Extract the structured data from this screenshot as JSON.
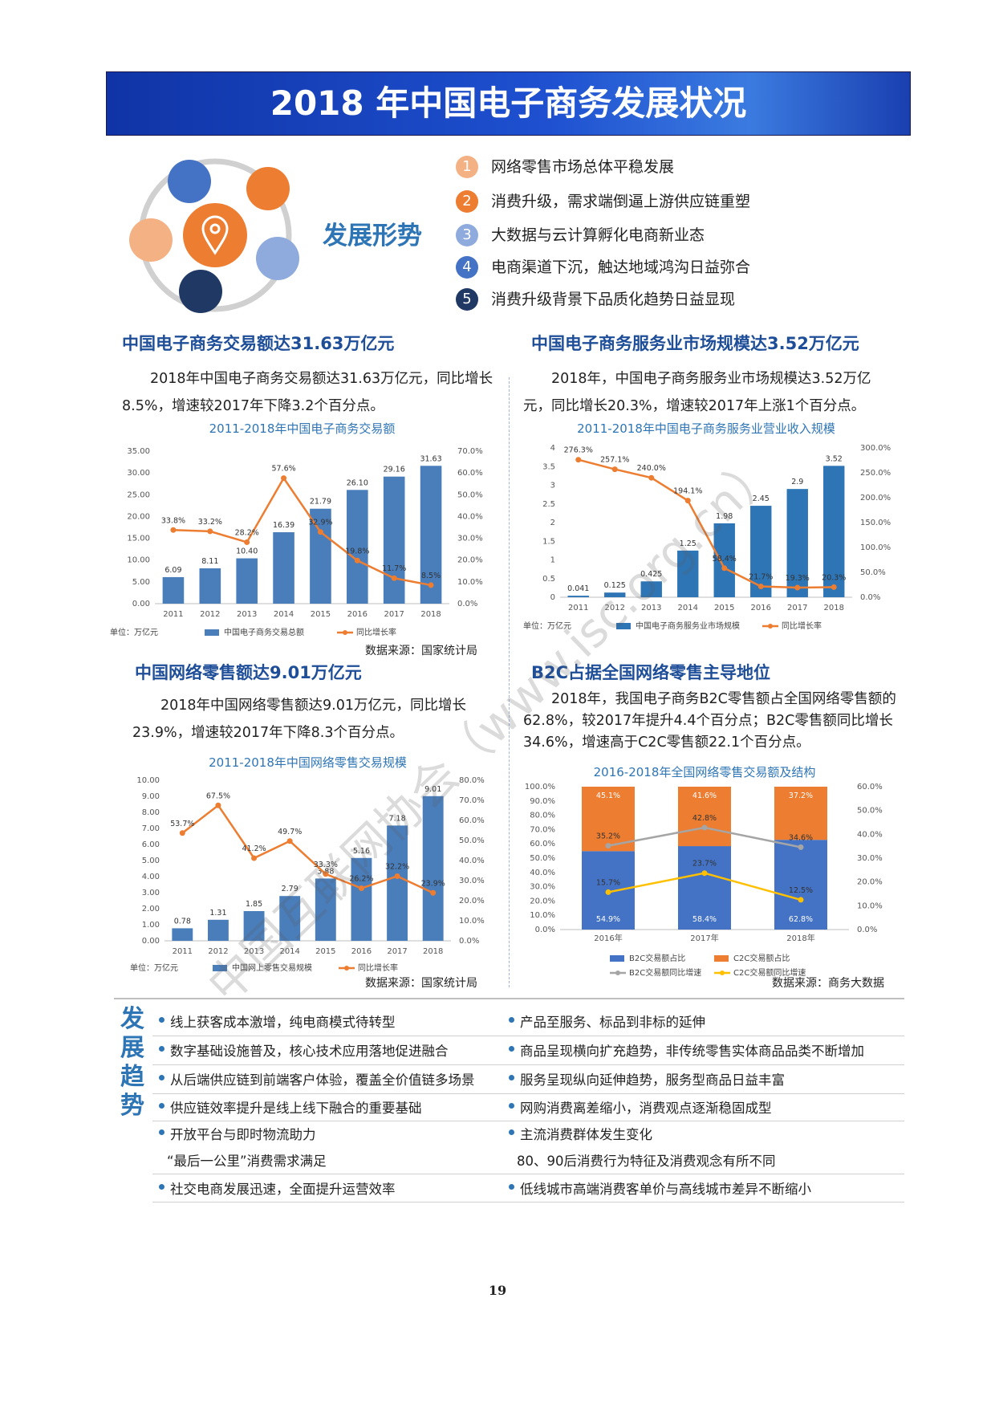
{
  "header": {
    "title": "2018 年中国电子商务发展状况"
  },
  "situation": {
    "label": "发展形势",
    "items": [
      {
        "number": 1,
        "text": "网络零售市场总体平稳发展",
        "color": "#f4b183"
      },
      {
        "number": 2,
        "text": "消费升级，需求端倒逼上游供应链重塑",
        "color": "#ed7d31"
      },
      {
        "number": 3,
        "text": "大数据与云计算孵化电商新业态",
        "color": "#8faadc"
      },
      {
        "number": 4,
        "text": "电商渠道下沉，触达地域鸿沟日益弥合",
        "color": "#4472c4"
      },
      {
        "number": 5,
        "text": "消费升级背景下品质化趋势日益显现",
        "color": "#203864"
      }
    ]
  },
  "sections": [
    {
      "heading": "中国电子商务交易额达31.63万亿元",
      "text": "2018年中国电子商务交易额达31.63万亿元，同比增长8.5%，增速较2017年下降3.2个百分点。"
    },
    {
      "heading": "中国电子商务服务业市场规模达3.52万亿元",
      "text": "2018年，中国电子商务服务业市场规模达3.52万亿元，同比增长20.3%，增速较2017年上涨1个百分点。"
    },
    {
      "heading": "中国网络零售额达9.01万亿元",
      "text": "2018年中国网络零售额达9.01万亿元，同比增长23.9%，增速较2017年下降8.3个百分点。"
    },
    {
      "heading": "B2C占据全国网络零售主导地位",
      "text": "2018年，我国电子商务B2C零售额占全国网络零售额的62.8%，较2017年提升4.4个百分点；B2C零售额同比增长34.6%，增速高于C2C零售额22.1个百分点。"
    }
  ],
  "chart_data": [
    {
      "type": "combo",
      "title": "2011-2018年中国电子商务交易额",
      "categories": [
        "2011",
        "2012",
        "2013",
        "2014",
        "2015",
        "2016",
        "2017",
        "2018"
      ],
      "series": [
        {
          "name": "中国电子商务交易总额",
          "type": "bar",
          "color": "#4a7ebb",
          "values": [
            6.09,
            8.11,
            10.4,
            16.39,
            21.79,
            26.1,
            29.16,
            31.63
          ],
          "value_labels": [
            "6.09",
            "8.11",
            "10.40",
            "16.39",
            "21.79",
            "26.10",
            "29.16",
            "31.63"
          ]
        },
        {
          "name": "同比增长率",
          "type": "line",
          "axis": "y2",
          "color": "#ed7d31",
          "values": [
            33.8,
            33.2,
            28.2,
            57.6,
            32.9,
            19.8,
            11.7,
            8.5
          ],
          "value_labels": [
            "33.8%",
            "33.2%",
            "28.2%",
            "57.6%",
            "32.9%",
            "19.8%",
            "11.7%",
            "8.5%"
          ]
        }
      ],
      "ylim": [
        0,
        35
      ],
      "yticks": [
        {
          "value": 0,
          "label": "0.00"
        },
        {
          "value": 5,
          "label": "5.00"
        },
        {
          "value": 10,
          "label": "10.00"
        },
        {
          "value": 15,
          "label": "15.00"
        },
        {
          "value": 20,
          "label": "20.00"
        },
        {
          "value": 25,
          "label": "25.00"
        },
        {
          "value": 30,
          "label": "30.00"
        },
        {
          "value": 35,
          "label": "35.00"
        }
      ],
      "y2lim": [
        0,
        70
      ],
      "y2ticks": [
        {
          "value": 0,
          "label": "0.0%"
        },
        {
          "value": 10,
          "label": "10.0%"
        },
        {
          "value": 20,
          "label": "20.0%"
        },
        {
          "value": 30,
          "label": "30.0%"
        },
        {
          "value": 40,
          "label": "40.0%"
        },
        {
          "value": 50,
          "label": "50.0%"
        },
        {
          "value": 60,
          "label": "60.0%"
        },
        {
          "value": 70,
          "label": "70.0%"
        }
      ],
      "unit": "单位：万亿元",
      "source": "数据来源：国家统计局"
    },
    {
      "type": "combo",
      "title": "2011-2018年中国电子商务服务业营业收入规模",
      "categories": [
        "2011",
        "2012",
        "2013",
        "2014",
        "2015",
        "2016",
        "2017",
        "2018"
      ],
      "series": [
        {
          "name": "中国电子商务服务业市场规模",
          "type": "bar",
          "color": "#2e75b6",
          "values": [
            0.041,
            0.125,
            0.425,
            1.25,
            1.98,
            2.45,
            2.9,
            3.52
          ]
        },
        {
          "name": "同比增长率",
          "type": "line",
          "axis": "y2",
          "color": "#ed7d31",
          "values": [
            276.3,
            257.1,
            240.0,
            194.1,
            58.4,
            21.7,
            19.3,
            20.3
          ],
          "value_labels": [
            "276.3%",
            "257.1%",
            "240.0%",
            "194.1%",
            "58.4%",
            "21.7%",
            "19.3%",
            "20.3%"
          ]
        }
      ],
      "ylim": [
        0,
        4
      ],
      "yticks": [
        0,
        0.5,
        1,
        1.5,
        2,
        2.5,
        3,
        3.5,
        4
      ],
      "y2lim": [
        0,
        300
      ],
      "y2ticks": [
        {
          "value": 0,
          "label": "0.0%"
        },
        {
          "value": 50,
          "label": "50.0%"
        },
        {
          "value": 100,
          "label": "100.0%"
        },
        {
          "value": 150,
          "label": "150.0%"
        },
        {
          "value": 200,
          "label": "200.0%"
        },
        {
          "value": 250,
          "label": "250.0%"
        },
        {
          "value": 300,
          "label": "300.0%"
        }
      ],
      "unit": "单位：万亿元"
    },
    {
      "type": "combo",
      "title": "2011-2018年中国网络零售交易规模",
      "categories": [
        "2011",
        "2012",
        "2013",
        "2014",
        "2015",
        "2016",
        "2017",
        "2018"
      ],
      "series": [
        {
          "name": "中国网上零售交易规模",
          "type": "bar",
          "color": "#4a7ebb",
          "values": [
            0.78,
            1.31,
            1.85,
            2.79,
            3.88,
            5.16,
            7.18,
            9.01
          ]
        },
        {
          "name": "同比增长率",
          "type": "line",
          "axis": "y2",
          "color": "#ed7d31",
          "values": [
            53.7,
            67.5,
            41.2,
            49.7,
            33.3,
            26.2,
            32.2,
            23.9
          ],
          "value_labels": [
            "53.7%",
            "67.5%",
            "41.2%",
            "49.7%",
            "33.3%",
            "26.2%",
            "32.2%",
            "23.9%"
          ]
        }
      ],
      "ylim": [
        0,
        10
      ],
      "yticks": [
        {
          "value": 0,
          "label": "0.00"
        },
        {
          "value": 1,
          "label": "1.00"
        },
        {
          "value": 2,
          "label": "2.00"
        },
        {
          "value": 3,
          "label": "3.00"
        },
        {
          "value": 4,
          "label": "4.00"
        },
        {
          "value": 5,
          "label": "5.00"
        },
        {
          "value": 6,
          "label": "6.00"
        },
        {
          "value": 7,
          "label": "7.00"
        },
        {
          "value": 8,
          "label": "8.00"
        },
        {
          "value": 9,
          "label": "9.00"
        },
        {
          "value": 10,
          "label": "10.00"
        }
      ],
      "y2lim": [
        0,
        80
      ],
      "y2ticks": [
        {
          "value": 0,
          "label": "0.0%"
        },
        {
          "value": 10,
          "label": "10.0%"
        },
        {
          "value": 20,
          "label": "20.0%"
        },
        {
          "value": 30,
          "label": "30.0%"
        },
        {
          "value": 40,
          "label": "40.0%"
        },
        {
          "value": 50,
          "label": "50.0%"
        },
        {
          "value": 60,
          "label": "60.0%"
        },
        {
          "value": 70,
          "label": "70.0%"
        },
        {
          "value": 80,
          "label": "80.0%"
        }
      ],
      "unit": "单位：万亿元",
      "source": "数据来源：国家统计局"
    },
    {
      "type": "combo",
      "stacked": true,
      "title": "2016-2018年全国网络零售交易额及结构",
      "categories": [
        "2016年",
        "2017年",
        "2018年"
      ],
      "series": [
        {
          "name": "B2C交易额占比",
          "type": "bar",
          "color": "#4472c4",
          "values": [
            54.9,
            58.4,
            62.8
          ],
          "value_labels": [
            "54.9%",
            "58.4%",
            "62.8%"
          ]
        },
        {
          "name": "C2C交易额占比",
          "type": "bar",
          "color": "#ed7d31",
          "values": [
            45.1,
            41.6,
            37.2
          ],
          "value_labels": [
            "45.1%",
            "41.6%",
            "37.2%"
          ]
        },
        {
          "name": "B2C交易额同比增速",
          "type": "line",
          "axis": "y2",
          "color": "#a5a5a5",
          "values": [
            35.2,
            42.8,
            34.6
          ],
          "value_labels": [
            "35.2%",
            "42.8%",
            "34.6%"
          ]
        },
        {
          "name": "C2C交易额同比增速",
          "type": "line",
          "axis": "y2",
          "color": "#ffc000",
          "values": [
            15.7,
            23.7,
            12.5
          ],
          "value_labels": [
            "15.7%",
            "23.7%",
            "12.5%"
          ]
        }
      ],
      "ylim": [
        0,
        100
      ],
      "yticks": [
        {
          "value": 0,
          "label": "0.0%"
        },
        {
          "value": 10,
          "label": "10.0%"
        },
        {
          "value": 20,
          "label": "20.0%"
        },
        {
          "value": 30,
          "label": "30.0%"
        },
        {
          "value": 40,
          "label": "40.0%"
        },
        {
          "value": 50,
          "label": "50.0%"
        },
        {
          "value": 60,
          "label": "60.0%"
        },
        {
          "value": 70,
          "label": "70.0%"
        },
        {
          "value": 80,
          "label": "80.0%"
        },
        {
          "value": 90,
          "label": "90.0%"
        },
        {
          "value": 100,
          "label": "100.0%"
        }
      ],
      "y2lim": [
        0,
        60
      ],
      "y2ticks": [
        {
          "value": 0,
          "label": "0.0%"
        },
        {
          "value": 10,
          "label": "10.0%"
        },
        {
          "value": 20,
          "label": "20.0%"
        },
        {
          "value": 30,
          "label": "30.0%"
        },
        {
          "value": 40,
          "label": "40.0%"
        },
        {
          "value": 50,
          "label": "50.0%"
        },
        {
          "value": 60,
          "label": "60.0%"
        }
      ],
      "source": "数据来源：商务大数据"
    }
  ],
  "trends": {
    "label": "发展趋势",
    "left": [
      [
        "线上获客成本激增，纯电商模式待转型"
      ],
      [
        "数字基础设施普及，核心技术应用落地促进融合"
      ],
      [
        "从后端供应链到前端客户体验，覆盖全价值链多场景"
      ],
      [
        "供应链效率提升是线上线下融合的重要基础"
      ],
      [
        "开放平台与即时物流助力",
        "“最后一公里”消费需求满足"
      ],
      [
        "社交电商发展迅速，全面提升运营效率"
      ]
    ],
    "right": [
      [
        "产品至服务、标品到非标的延伸"
      ],
      [
        "商品呈现横向扩充趋势，非传统零售实体商品品类不断增加"
      ],
      [
        "服务呈现纵向延伸趋势，服务型商品日益丰富"
      ],
      [
        "网购消费离差缩小，消费观点逐渐稳固成型"
      ],
      [
        "主流消费群体发生变化",
        "80、90后消费行为特征及消费观念有所不同"
      ],
      [
        "低线城市高端消费客单价与高线城市差异不断缩小"
      ]
    ]
  },
  "watermark": "中国互联网协会（www.isc.org.cn）",
  "page_number": "19"
}
